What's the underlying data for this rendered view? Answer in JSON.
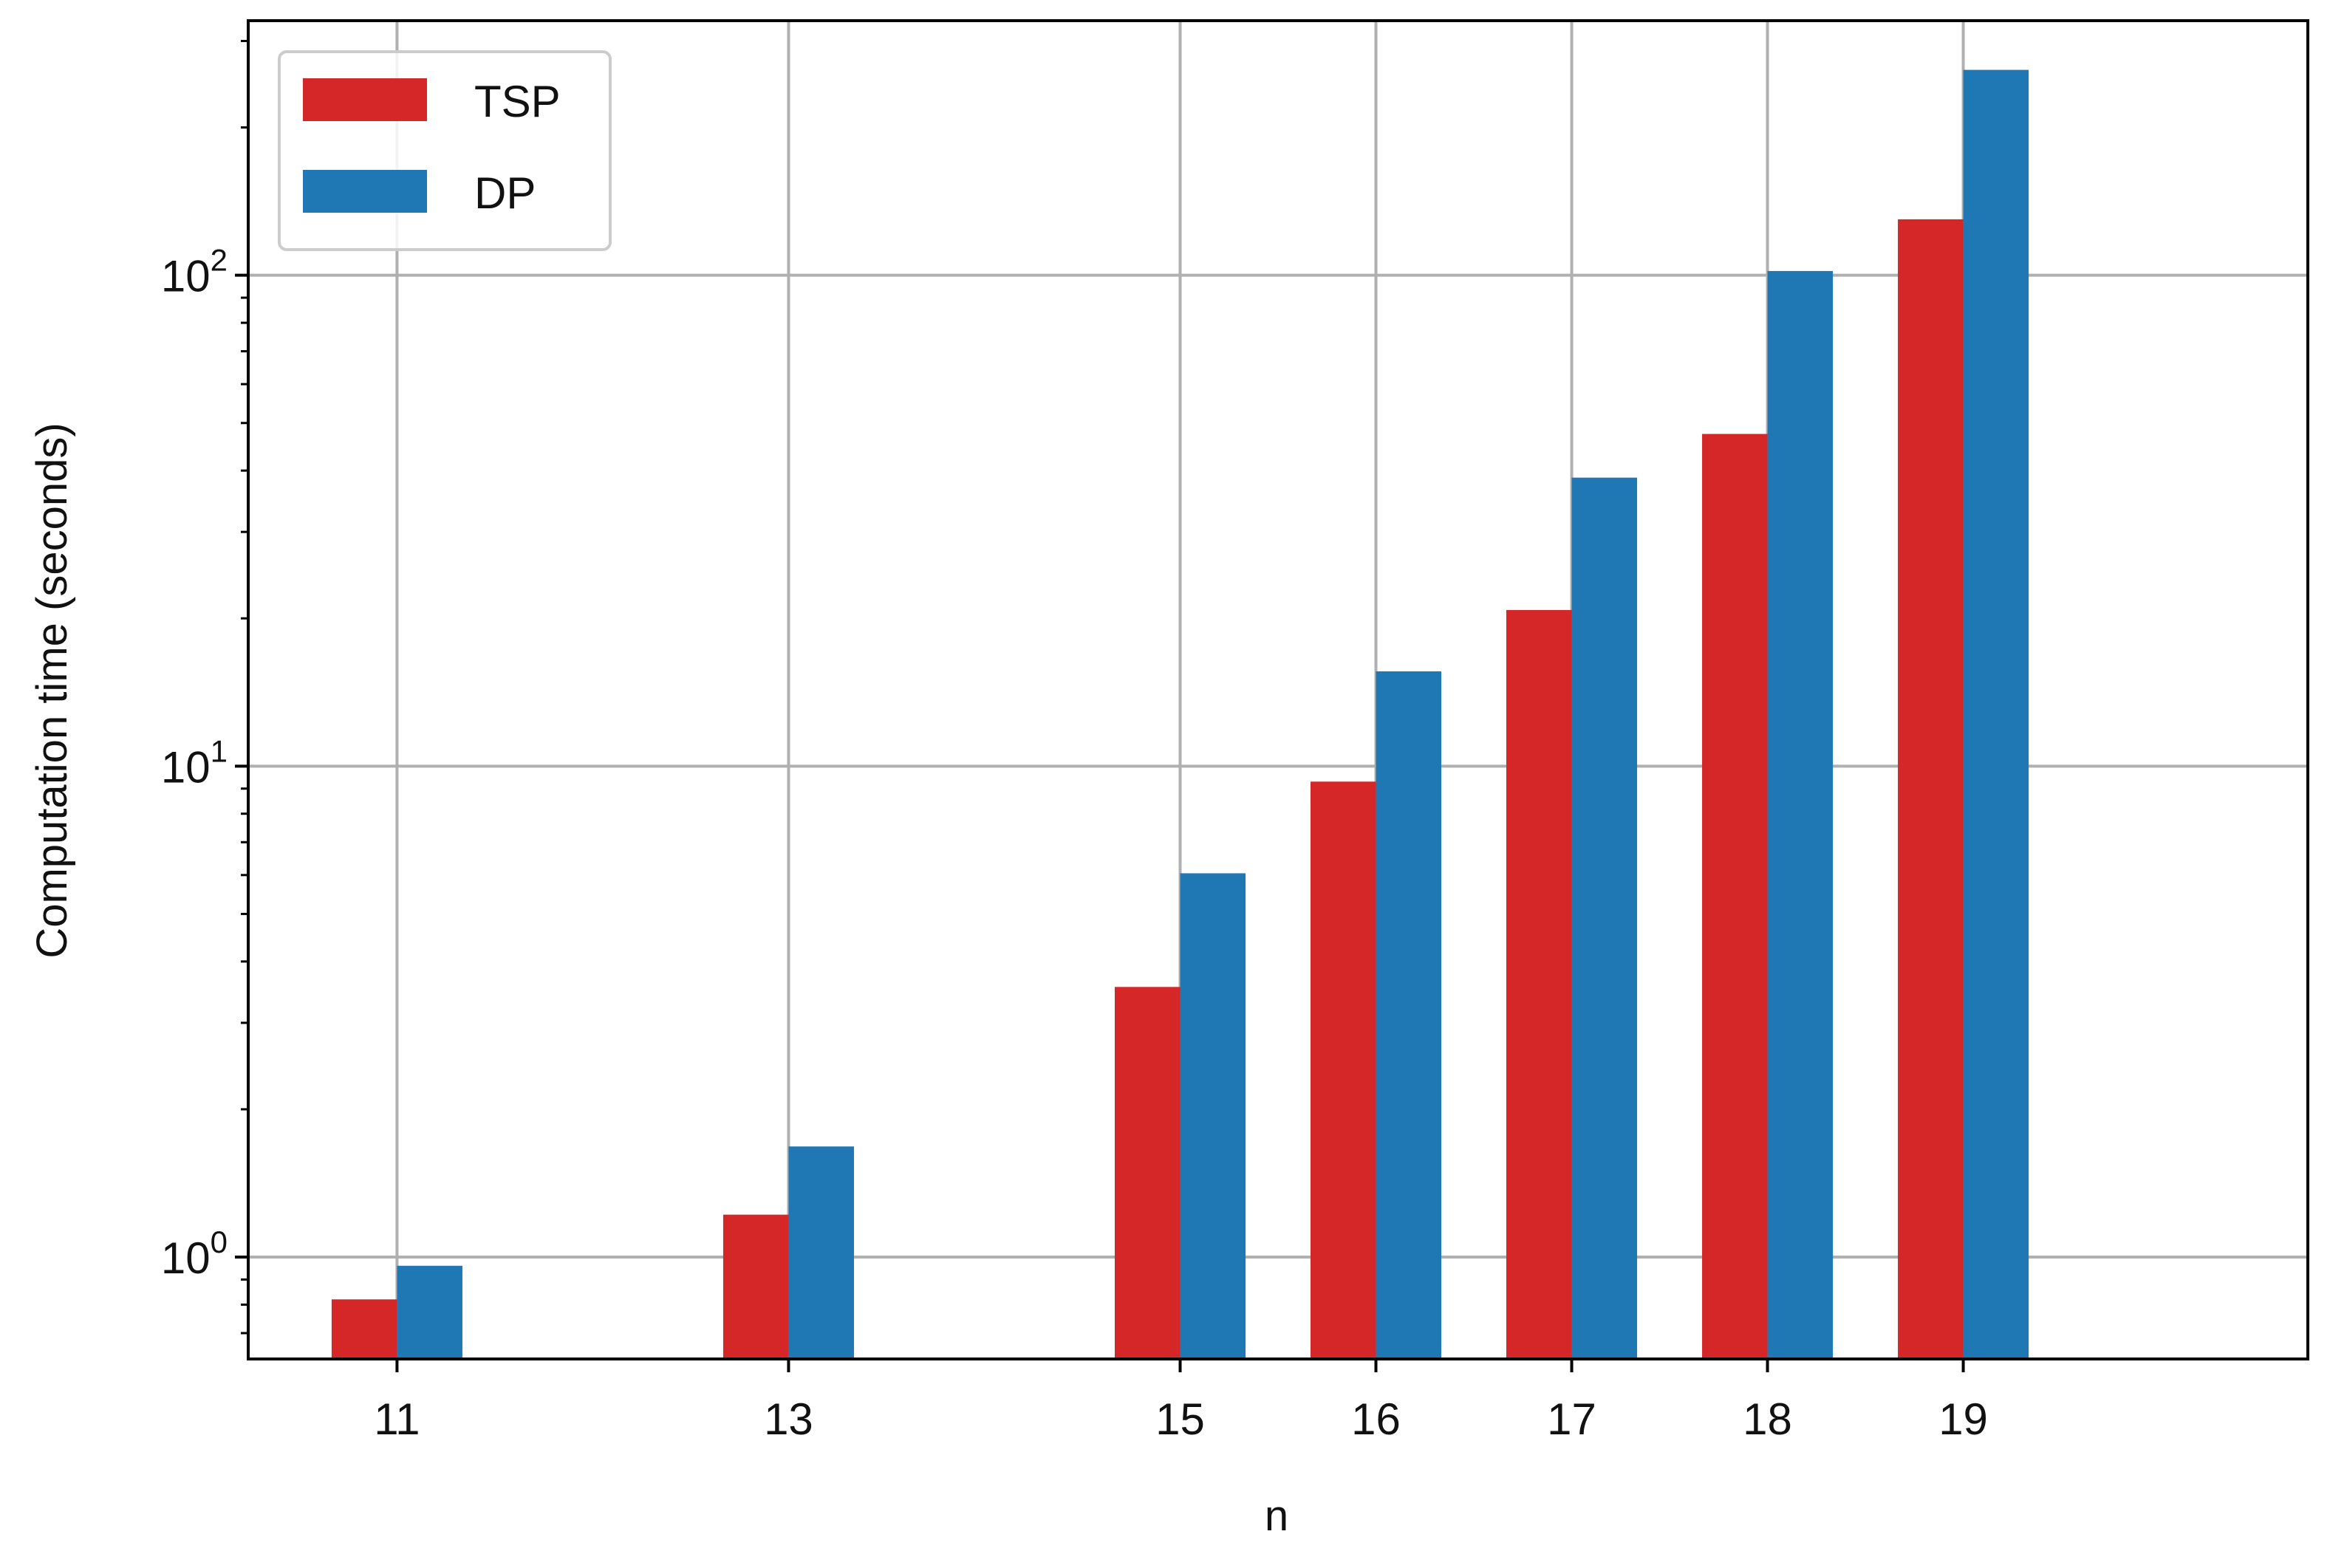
{
  "chart_data": {
    "type": "bar",
    "title": "",
    "xlabel": "n",
    "ylabel": "Computation time (seconds)",
    "yscale": "log",
    "ylim": [
      0.62,
      330
    ],
    "categories": [
      "11",
      "13",
      "15",
      "16",
      "17",
      "18",
      "19"
    ],
    "x": [
      11,
      13,
      15,
      16,
      17,
      18,
      19
    ],
    "xlim": [
      10.24,
      20.76
    ],
    "series": [
      {
        "name": "TSP",
        "color": "#d62728",
        "values": [
          0.82,
          1.22,
          3.55,
          9.3,
          20.8,
          47.5,
          130
        ]
      },
      {
        "name": "DP",
        "color": "#1f77b4",
        "values": [
          0.96,
          1.68,
          6.05,
          15.6,
          38.7,
          102,
          262
        ]
      }
    ],
    "y_ticks": [
      {
        "value": 1,
        "base": "10",
        "exp": "0"
      },
      {
        "value": 10,
        "base": "10",
        "exp": "1"
      },
      {
        "value": 100,
        "base": "10",
        "exp": "2"
      }
    ],
    "grid": true,
    "legend_position": "top-left"
  }
}
